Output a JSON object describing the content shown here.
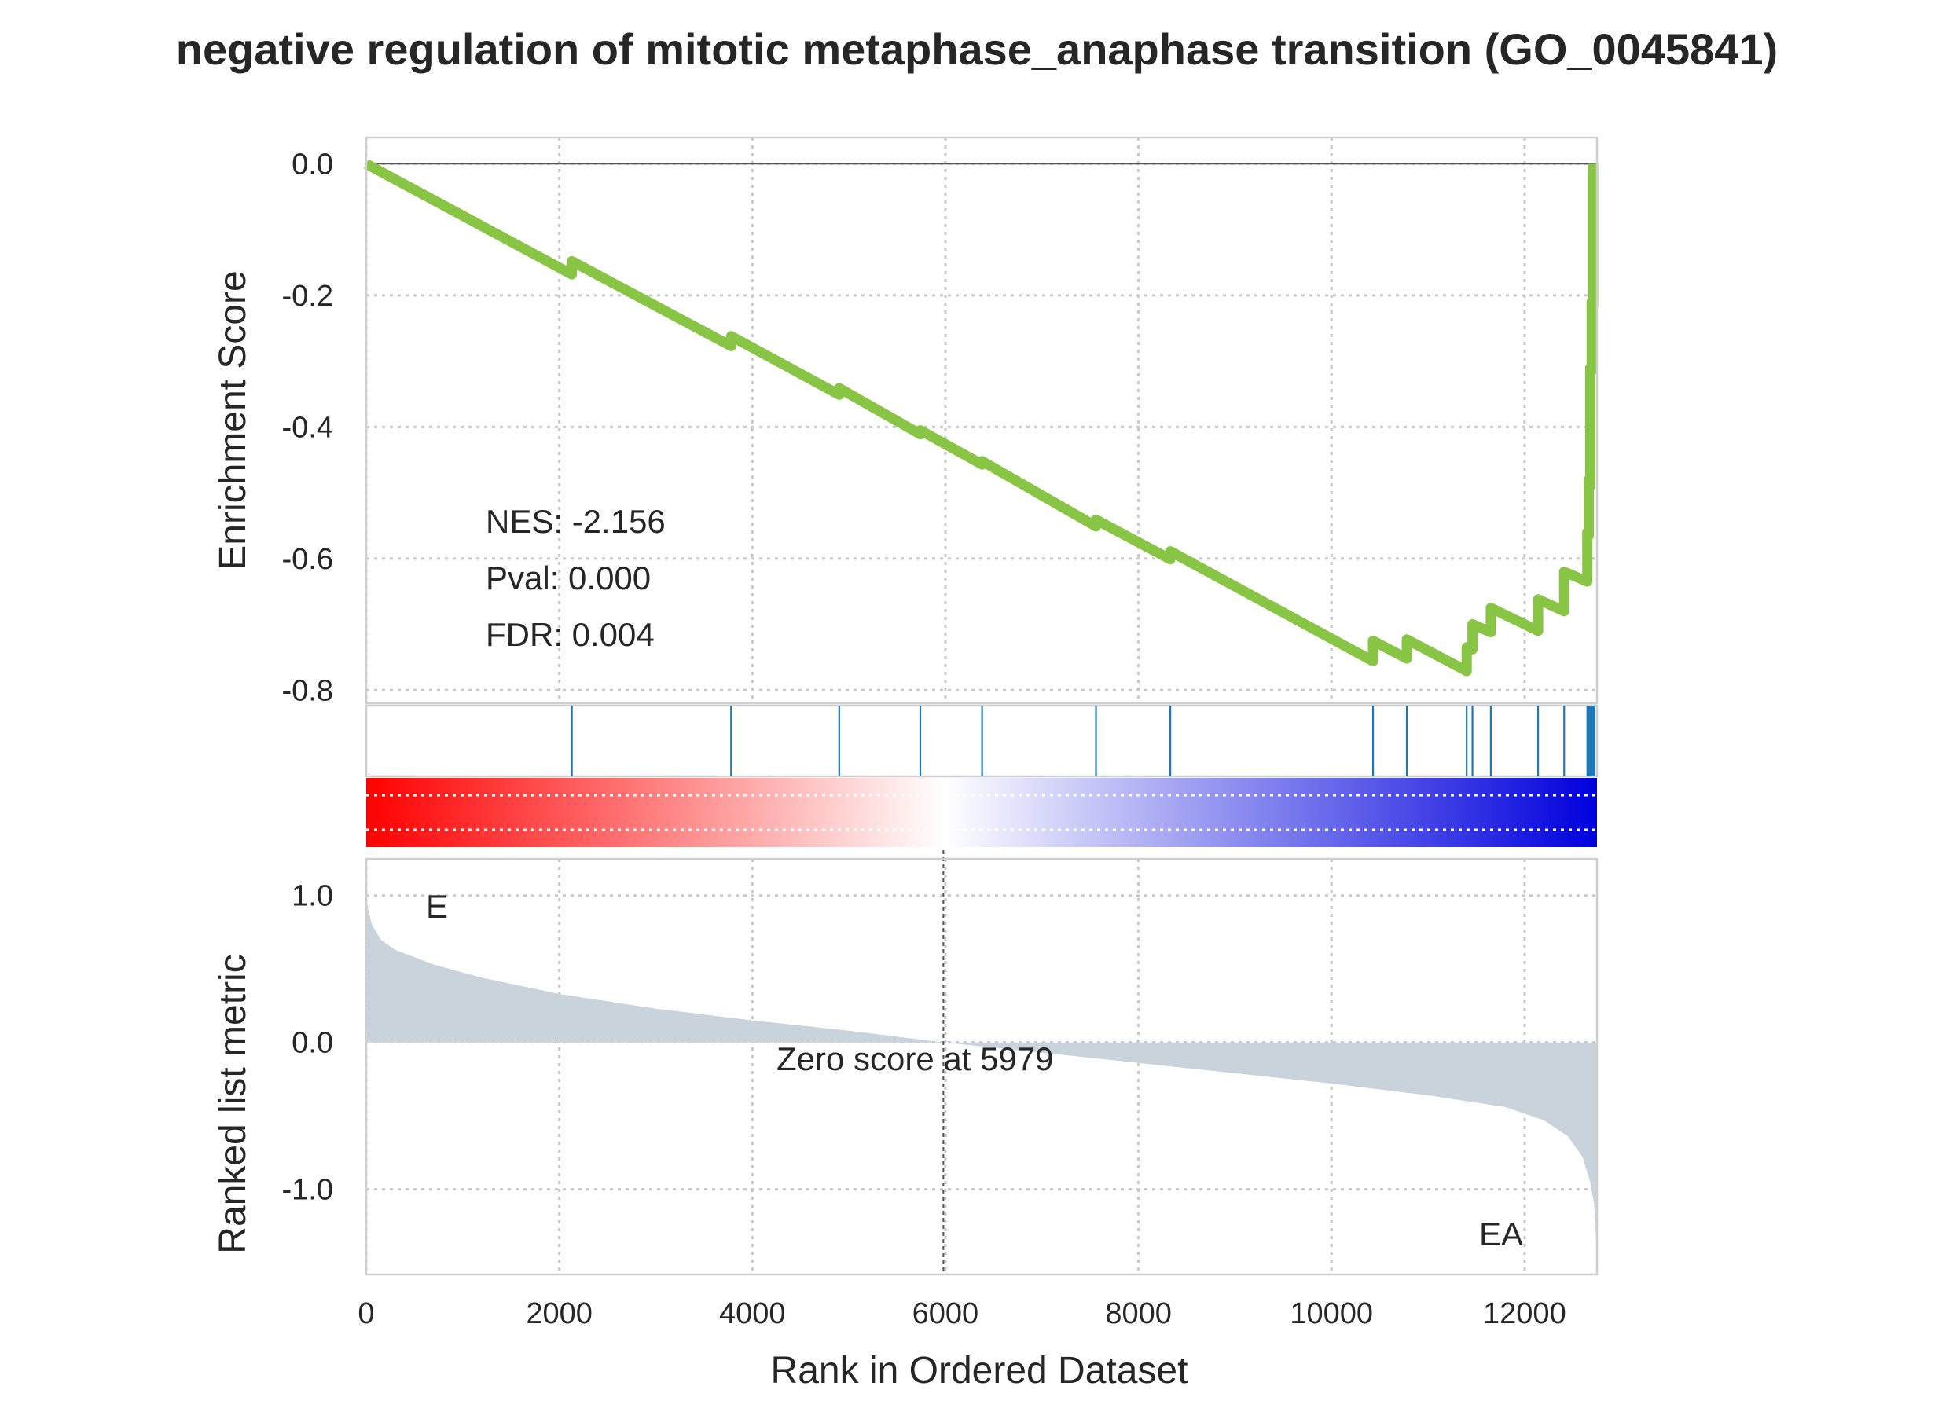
{
  "chart_data": {
    "type": "line",
    "title": "negative regulation of mitotic metaphase_anaphase transition (GO_0045841)",
    "xlabel": "Rank in Ordered Dataset",
    "xlim": [
      0,
      12750
    ],
    "x_ticks": [
      0,
      2000,
      4000,
      6000,
      8000,
      10000,
      12000
    ],
    "x_tick_labels": [
      "0",
      "2000",
      "4000",
      "6000",
      "8000",
      "10000",
      "12000"
    ],
    "grid": true,
    "colors": {
      "es_line": "#88c544",
      "hit_line": "#1f77b4",
      "metric_fill": "#c8d3dc",
      "zero_line": "#555555",
      "pos_label": "#ff0000",
      "neg_label": "#0000ff",
      "gradient_pos": "#ff0000",
      "gradient_mid": "#ffffff",
      "gradient_neg": "#0000dd"
    },
    "enrichment": {
      "ylabel": "Enrichment Score",
      "ylim": [
        -0.82,
        0.04
      ],
      "y_ticks": [
        0.0,
        -0.2,
        -0.4,
        -0.6,
        -0.8
      ],
      "y_tick_labels": [
        "0.0",
        "-0.2",
        "-0.4",
        "-0.6",
        "-0.8"
      ],
      "stats": {
        "nes": "NES: -2.156",
        "pval": "Pval: 0.000",
        "fdr": "FDR: 0.004"
      },
      "running_es": [
        [
          0,
          0.0
        ],
        [
          2130,
          -0.168
        ],
        [
          2130,
          -0.148
        ],
        [
          3780,
          -0.277
        ],
        [
          3780,
          -0.262
        ],
        [
          4900,
          -0.351
        ],
        [
          4900,
          -0.341
        ],
        [
          5740,
          -0.411
        ],
        [
          5740,
          -0.405
        ],
        [
          6380,
          -0.457
        ],
        [
          6380,
          -0.452
        ],
        [
          7560,
          -0.551
        ],
        [
          7560,
          -0.541
        ],
        [
          8330,
          -0.601
        ],
        [
          8330,
          -0.589
        ],
        [
          10430,
          -0.756
        ],
        [
          10430,
          -0.725
        ],
        [
          10780,
          -0.752
        ],
        [
          10780,
          -0.723
        ],
        [
          11400,
          -0.771
        ],
        [
          11400,
          -0.735
        ],
        [
          11460,
          -0.738
        ],
        [
          11460,
          -0.7
        ],
        [
          11650,
          -0.712
        ],
        [
          11650,
          -0.675
        ],
        [
          12140,
          -0.71
        ],
        [
          12140,
          -0.662
        ],
        [
          12410,
          -0.68
        ],
        [
          12410,
          -0.62
        ],
        [
          12650,
          -0.635
        ],
        [
          12650,
          -0.56
        ],
        [
          12665,
          -0.565
        ],
        [
          12665,
          -0.48
        ],
        [
          12680,
          -0.49
        ],
        [
          12680,
          -0.31
        ],
        [
          12695,
          -0.315
        ],
        [
          12695,
          -0.21
        ],
        [
          12710,
          -0.215
        ],
        [
          12710,
          0.0
        ]
      ]
    },
    "hits": [
      2130,
      3780,
      4900,
      5740,
      6380,
      7560,
      8330,
      10430,
      10780,
      11400,
      11460,
      11650,
      12140,
      12410,
      12650,
      12665,
      12680,
      12695,
      12710,
      12725
    ],
    "metric": {
      "ylabel": "Ranked list metric",
      "ylim": [
        -1.58,
        1.25
      ],
      "y_ticks": [
        1.0,
        0.0,
        -1.0
      ],
      "y_tick_labels": [
        "1.0",
        "0.0",
        "-1.0"
      ],
      "zero_score_label": "Zero score at 5979",
      "zero_rank": 5979,
      "pos_class": "E",
      "neg_class": "EA",
      "curve": [
        [
          0,
          1.0
        ],
        [
          20,
          0.9
        ],
        [
          60,
          0.8
        ],
        [
          150,
          0.7
        ],
        [
          300,
          0.63
        ],
        [
          700,
          0.53
        ],
        [
          1200,
          0.44
        ],
        [
          2000,
          0.33
        ],
        [
          3000,
          0.23
        ],
        [
          4000,
          0.15
        ],
        [
          5000,
          0.08
        ],
        [
          5979,
          0.0
        ],
        [
          7000,
          -0.07
        ],
        [
          8000,
          -0.14
        ],
        [
          9000,
          -0.21
        ],
        [
          10000,
          -0.28
        ],
        [
          11000,
          -0.36
        ],
        [
          11800,
          -0.44
        ],
        [
          12200,
          -0.53
        ],
        [
          12450,
          -0.64
        ],
        [
          12600,
          -0.78
        ],
        [
          12680,
          -0.95
        ],
        [
          12720,
          -1.1
        ],
        [
          12750,
          -1.45
        ]
      ]
    }
  }
}
